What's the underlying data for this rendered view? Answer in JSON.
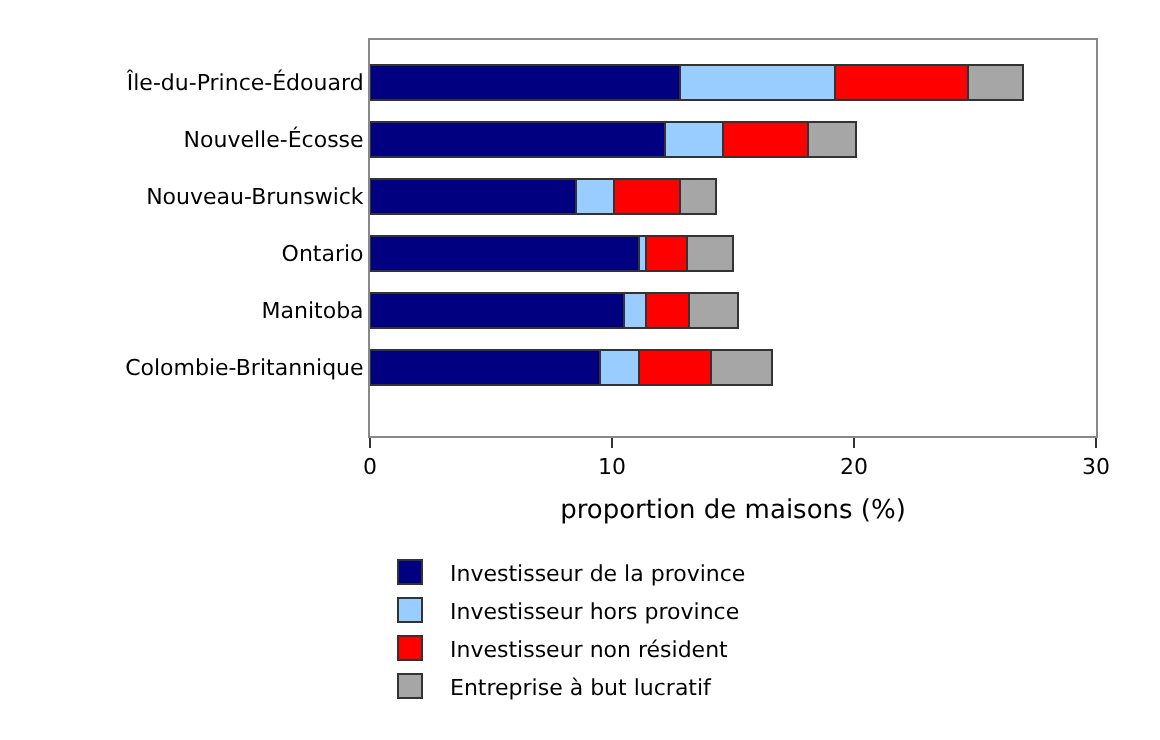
{
  "chart_data": {
    "type": "bar",
    "orientation": "horizontal",
    "stacked": true,
    "xlabel": "proportion de maisons (%)",
    "categories": [
      "Île-du-Prince-Édouard",
      "Nouvelle-Écosse",
      "Nouveau-Brunswick",
      "Ontario",
      "Manitoba",
      "Colombie-Britannique"
    ],
    "series": [
      {
        "name": "Investisseur de la province",
        "color": "#000080",
        "values": [
          12.8,
          12.2,
          8.5,
          11.1,
          10.5,
          9.5
        ]
      },
      {
        "name": "Investisseur hors province",
        "color": "#99ccff",
        "values": [
          6.4,
          2.4,
          1.6,
          0.3,
          0.9,
          1.6
        ]
      },
      {
        "name": "Investisseur non résident",
        "color": "#ff0000",
        "values": [
          5.5,
          3.5,
          2.7,
          1.7,
          1.8,
          3.0
        ]
      },
      {
        "name": "Entreprise à but lucratif",
        "color": "#a6a6a6",
        "values": [
          2.3,
          2.0,
          1.5,
          1.9,
          2.0,
          2.5
        ]
      }
    ],
    "xlim": [
      0,
      30
    ],
    "xticks": [
      0,
      10,
      20,
      30
    ],
    "grid": false,
    "legend": "bottom"
  }
}
